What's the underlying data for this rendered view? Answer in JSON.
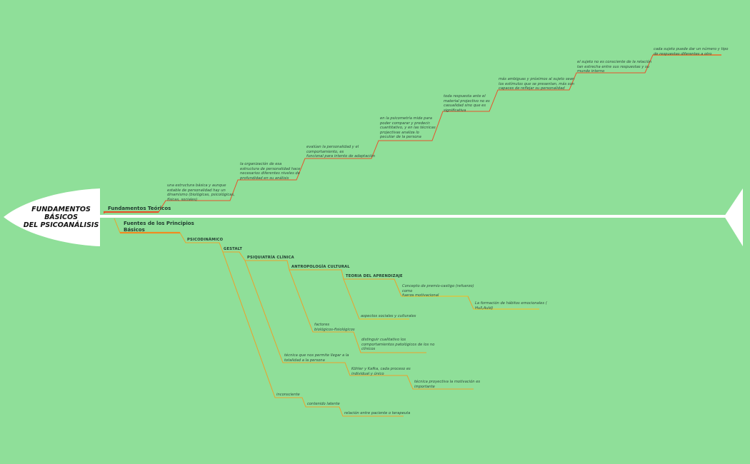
{
  "title": "FUNDAMENTOS\nBÁSICOS\nDEL PSICOANÁLISIS",
  "colors": {
    "background": "#8fdf99",
    "upper_branch": "#e8502a",
    "lower_branch": "#eca02a",
    "spine": "#ffffff"
  },
  "upper": {
    "label": "Fundamentos Teóricos",
    "items": [
      "una estructura básica y aunque\nestable de personalidad hay un\ndinamismo (biológicas, psicológicas,\nfísicas, sociales)",
      "la organización de esa\nestructura de personalidad hace\nnecesarios diferentes niveles de\nprofundidad en su análisis",
      "evalúan la personalidad y el\ncomportamiento, es\nfuncional para intento de adaptación",
      "en la psicometría mide para\npoder comparar y predecir.\ncuantitativo, y en las técnicas\nprojectivas analiza lo\npeculiar de la persona",
      "toda respuesta ante el\nmaterial projectivo no es\ncasualidad sino que es\nsignificativa",
      "más ambiguas y próximos al sujeto sean\nlos estímulos que se presentan, más son\ncapaces de reflejar su personalidad",
      "el sujeto no es consciente de la relación\ntan estrecha entre sus respuestas y su\nmundo interno",
      "cada sujeto puede dar un número y tipo\nde respuestas diferentes a otro"
    ]
  },
  "lower": {
    "label": "Fuentes de los Principios\nBásicos",
    "categories": [
      "PSICODINÁMICO",
      "GESTALT",
      "PSIQUIATRÍA CLÍNICA",
      "ANTROPOLOGÍA CULTURAL",
      "TEORIA DEL APRENDIZAJE"
    ],
    "notes": {
      "concepto": "Concepto de premio-castigo (refuerzo)\ncomo\nfuerza motivacional",
      "formacion": "La formación de hábitos emocionales (\nHull,Auld)",
      "aspectos": "aspectos sociales y culturales",
      "factores": "factores\nbiológicos-fisiológicos",
      "distinguir": "distinguir cualitativo los\ncomportamientos patológicos de los no\nclínicos",
      "tecnica_totalidad": "técnica que nos permite llegar a la\ntotalidad a la persona",
      "kohler": "Köhler y Kafka, cada proceso es\nindividual y único",
      "tecnica_proyectiva": "técnica proyectiva la motivación es\nimportante",
      "inconsciente": "inconsciente",
      "contenido": "contenido latente",
      "relacion": "relación entre paciente o terapeuta"
    }
  }
}
